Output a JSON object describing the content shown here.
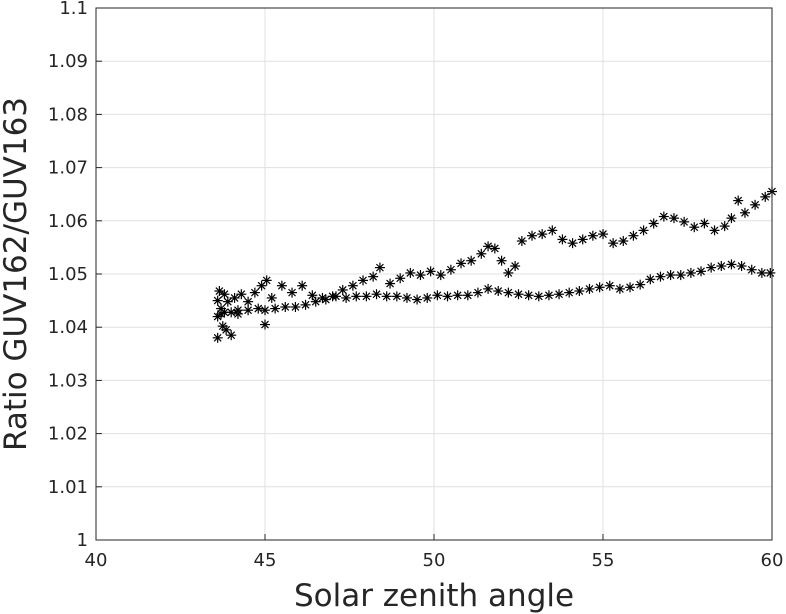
{
  "chart_data": {
    "type": "scatter",
    "xlabel": "Solar zenith angle",
    "ylabel": "Ratio GUV162/GUV163",
    "xlim": [
      40,
      60
    ],
    "ylim": [
      1.0,
      1.1
    ],
    "xticks": [
      "40",
      "45",
      "50",
      "55",
      "60"
    ],
    "yticks": [
      "1",
      "1.01",
      "1.02",
      "1.03",
      "1.04",
      "1.05",
      "1.06",
      "1.07",
      "1.08",
      "1.09",
      "1.1"
    ],
    "grid": true,
    "marker": "*",
    "marker_color": "#000000",
    "series": [
      {
        "x": [
          43.6,
          43.7,
          43.8,
          44.0,
          44.2,
          44.5,
          44.8,
          45.0,
          45.3,
          45.6,
          45.9,
          46.2,
          46.5,
          46.8,
          47.1,
          47.4,
          47.7,
          48.0,
          48.3,
          48.6,
          48.9,
          49.2,
          49.5,
          49.8,
          50.1,
          50.4,
          50.7,
          51.0,
          51.3,
          51.6,
          51.9,
          52.2,
          52.5,
          52.8,
          53.1,
          53.4,
          53.7,
          54.0,
          54.3,
          54.6,
          54.9,
          55.2,
          55.5,
          55.8,
          56.1,
          56.4,
          56.7,
          57.0,
          57.3,
          57.6,
          57.9,
          58.2,
          58.5,
          58.8,
          59.1,
          59.4,
          59.7,
          59.95
        ],
        "y": [
          1.042,
          1.0425,
          1.0428,
          1.0428,
          1.0432,
          1.0432,
          1.0435,
          1.0432,
          1.0435,
          1.0438,
          1.0438,
          1.0442,
          1.0448,
          1.0452,
          1.0458,
          1.0455,
          1.0458,
          1.0458,
          1.0462,
          1.0458,
          1.0458,
          1.0455,
          1.0452,
          1.0455,
          1.046,
          1.0458,
          1.046,
          1.046,
          1.0465,
          1.0472,
          1.0468,
          1.0465,
          1.0462,
          1.046,
          1.0458,
          1.046,
          1.0462,
          1.0465,
          1.0468,
          1.0472,
          1.0475,
          1.0478,
          1.0472,
          1.0475,
          1.048,
          1.049,
          1.0495,
          1.0498,
          1.0498,
          1.0502,
          1.0505,
          1.0512,
          1.0515,
          1.0518,
          1.0515,
          1.0508,
          1.0502,
          1.0502
        ]
      },
      {
        "x": [
          43.6,
          43.6,
          43.65,
          43.7,
          43.75,
          43.8,
          43.85,
          43.9,
          44.0,
          44.1,
          44.2,
          44.3,
          44.5,
          44.7,
          44.9,
          45.0,
          45.05,
          45.2,
          45.5,
          45.8,
          46.1,
          46.4,
          46.7,
          47.0,
          47.3,
          47.6,
          47.9,
          48.2,
          48.4,
          48.7,
          49.0,
          49.3,
          49.6,
          49.9,
          50.2,
          50.5,
          50.8,
          51.1,
          51.4,
          51.6,
          51.8,
          52.0,
          52.2,
          52.4,
          52.6,
          52.9,
          53.2,
          53.5,
          53.8,
          54.1,
          54.4,
          54.7,
          55.0,
          55.3,
          55.6,
          55.9,
          56.2,
          56.5,
          56.8,
          57.1,
          57.4,
          57.7,
          58.0,
          58.3,
          58.6,
          58.8,
          59.0,
          59.2,
          59.5,
          59.8,
          60.0
        ],
        "y": [
          1.038,
          1.045,
          1.0468,
          1.0435,
          1.0402,
          1.0462,
          1.0395,
          1.0448,
          1.0385,
          1.0455,
          1.0425,
          1.0462,
          1.0448,
          1.0465,
          1.0478,
          1.0405,
          1.0488,
          1.0455,
          1.0478,
          1.0465,
          1.0478,
          1.046,
          1.0455,
          1.0458,
          1.047,
          1.0478,
          1.0488,
          1.0495,
          1.0512,
          1.0482,
          1.0492,
          1.0502,
          1.0498,
          1.0505,
          1.0498,
          1.0508,
          1.052,
          1.0525,
          1.0538,
          1.0552,
          1.0548,
          1.0525,
          1.0502,
          1.0515,
          1.0562,
          1.0572,
          1.0575,
          1.0582,
          1.0565,
          1.0558,
          1.0565,
          1.0572,
          1.0575,
          1.0558,
          1.0562,
          1.0572,
          1.0582,
          1.0595,
          1.0608,
          1.0605,
          1.0598,
          1.0588,
          1.0595,
          1.0582,
          1.059,
          1.0605,
          1.0638,
          1.0615,
          1.063,
          1.0645,
          1.0655
        ]
      }
    ]
  }
}
